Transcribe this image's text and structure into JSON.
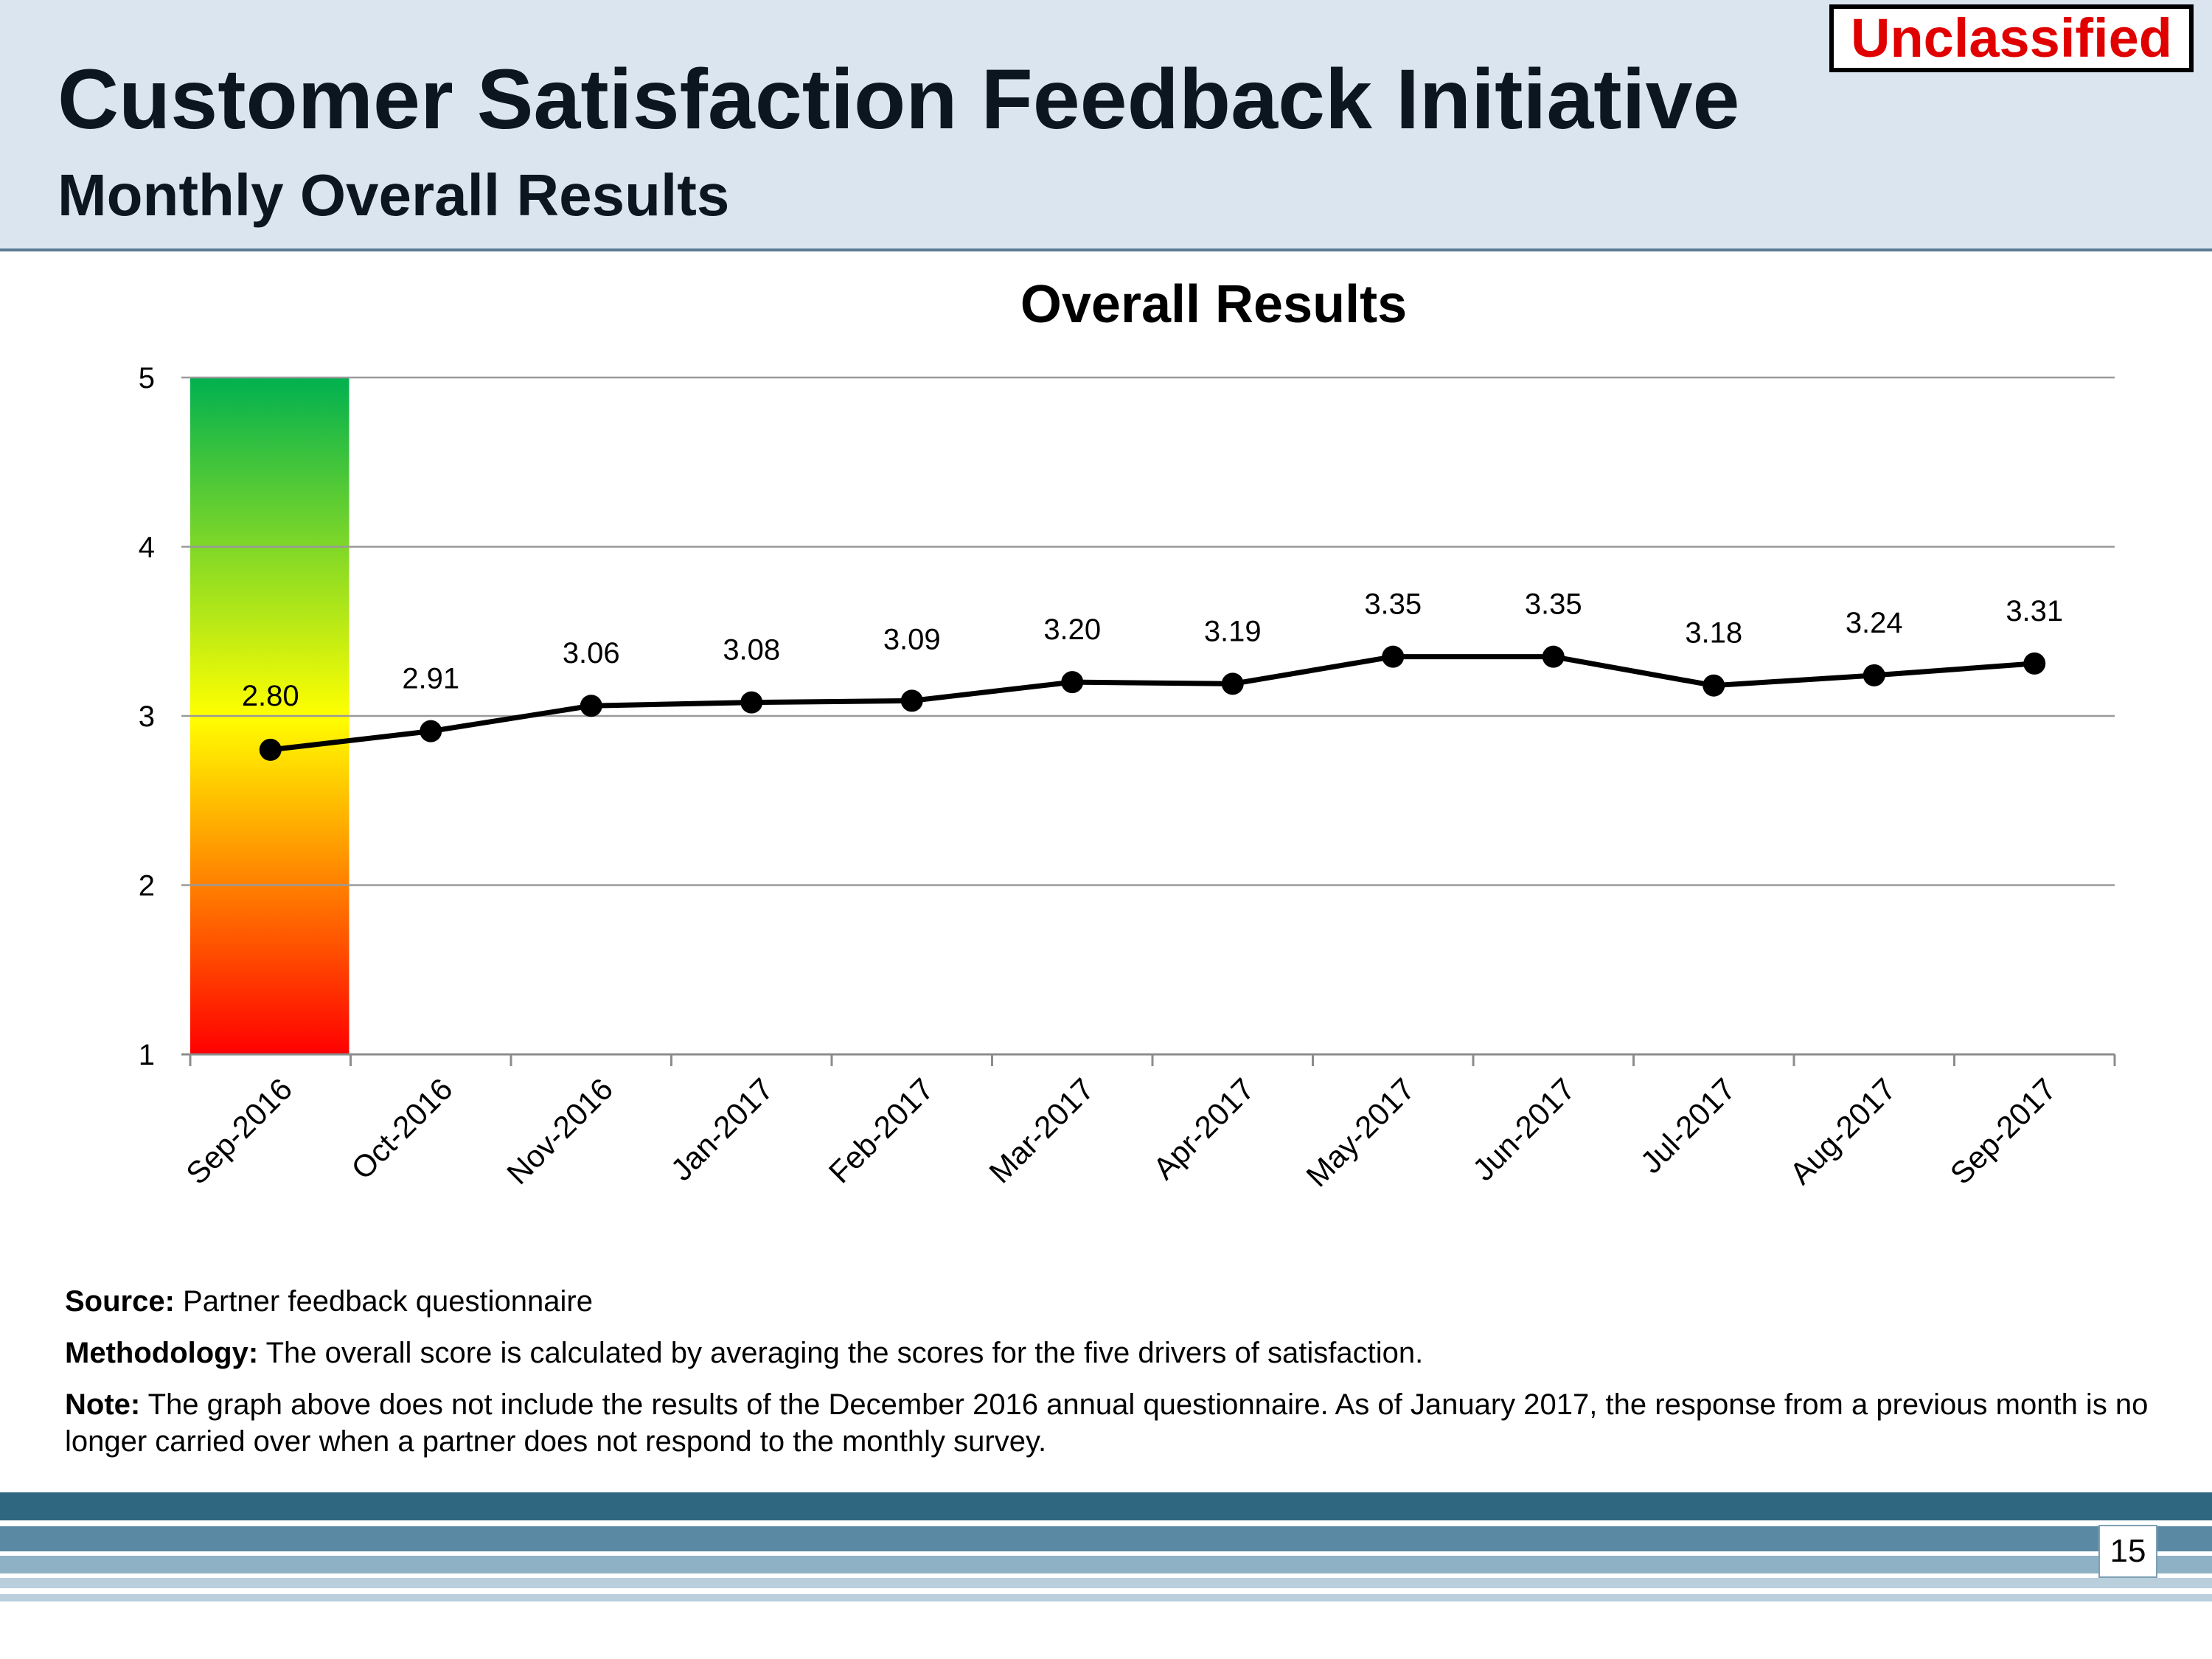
{
  "header": {
    "title": "Customer Satisfaction Feedback Initiative",
    "subtitle": "Monthly Overall Results",
    "classification": "Unclassified"
  },
  "chart_data": {
    "type": "line",
    "title": "Overall Results",
    "xlabel": "",
    "ylabel": "",
    "categories": [
      "Sep-2016",
      "Oct-2016",
      "Nov-2016",
      "Jan-2017",
      "Feb-2017",
      "Mar-2017",
      "Apr-2017",
      "May-2017",
      "Jun-2017",
      "Jul-2017",
      "Aug-2017",
      "Sep-2017"
    ],
    "values": [
      2.8,
      2.91,
      3.06,
      3.08,
      3.09,
      3.2,
      3.19,
      3.35,
      3.35,
      3.18,
      3.24,
      3.31
    ],
    "data_labels": [
      "2.80",
      "2.91",
      "3.06",
      "3.08",
      "3.09",
      "3.20",
      "3.19",
      "3.35",
      "3.35",
      "3.18",
      "3.24",
      "3.31"
    ],
    "ylim": [
      1,
      5
    ],
    "yticks": [
      1,
      2,
      3,
      4,
      5
    ],
    "grid": true,
    "legend": "none",
    "line_color": "#000000",
    "scale_bar_colors": [
      "#00b050",
      "#ffff00",
      "#ff0000"
    ]
  },
  "notes": {
    "source_label": "Source:",
    "source_text": " Partner feedback questionnaire",
    "methodology_label": "Methodology:",
    "methodology_text": " The overall score is calculated by averaging the scores for the five drivers of satisfaction.",
    "note_label": "Note:",
    "note_text": " The graph above does not include the results of the December 2016 annual questionnaire. As of January 2017, the response from a previous month is no longer carried over when a partner does not respond to the monthly survey."
  },
  "footer": {
    "page_number": "15",
    "band_colors": [
      "#2f6680",
      "#5a8aa3",
      "#8fb1c5",
      "#b9cfdc"
    ]
  }
}
